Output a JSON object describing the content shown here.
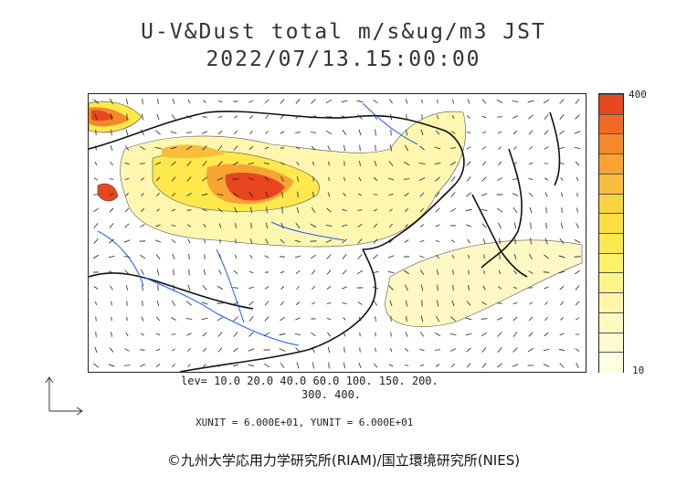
{
  "title_line1": "U-V&Dust total m/s&ug/m3 JST",
  "title_line2": "2022/07/13.15:00:00",
  "levels_line1": "lev= 10.0 20.0 40.0 60.0 100. 150. 200.",
  "levels_line2": "300. 400.",
  "unit_line": "XUNIT = 6.000E+01, YUNIT = 6.000E+01",
  "colorbar": {
    "top_label": "400",
    "bottom_label": "10",
    "colors": [
      "#e8461e",
      "#f06a26",
      "#f5882b",
      "#f7a433",
      "#f9bd3a",
      "#fbd33f",
      "#fcde43",
      "#fde94b",
      "#fef26a",
      "#fef58a",
      "#fff7a6",
      "#fff9bc",
      "#fffbd0",
      "#fffde2"
    ]
  },
  "copyright": "©九州大学応用力学研究所(RIAM)/国立環境研究所(NIES)"
}
